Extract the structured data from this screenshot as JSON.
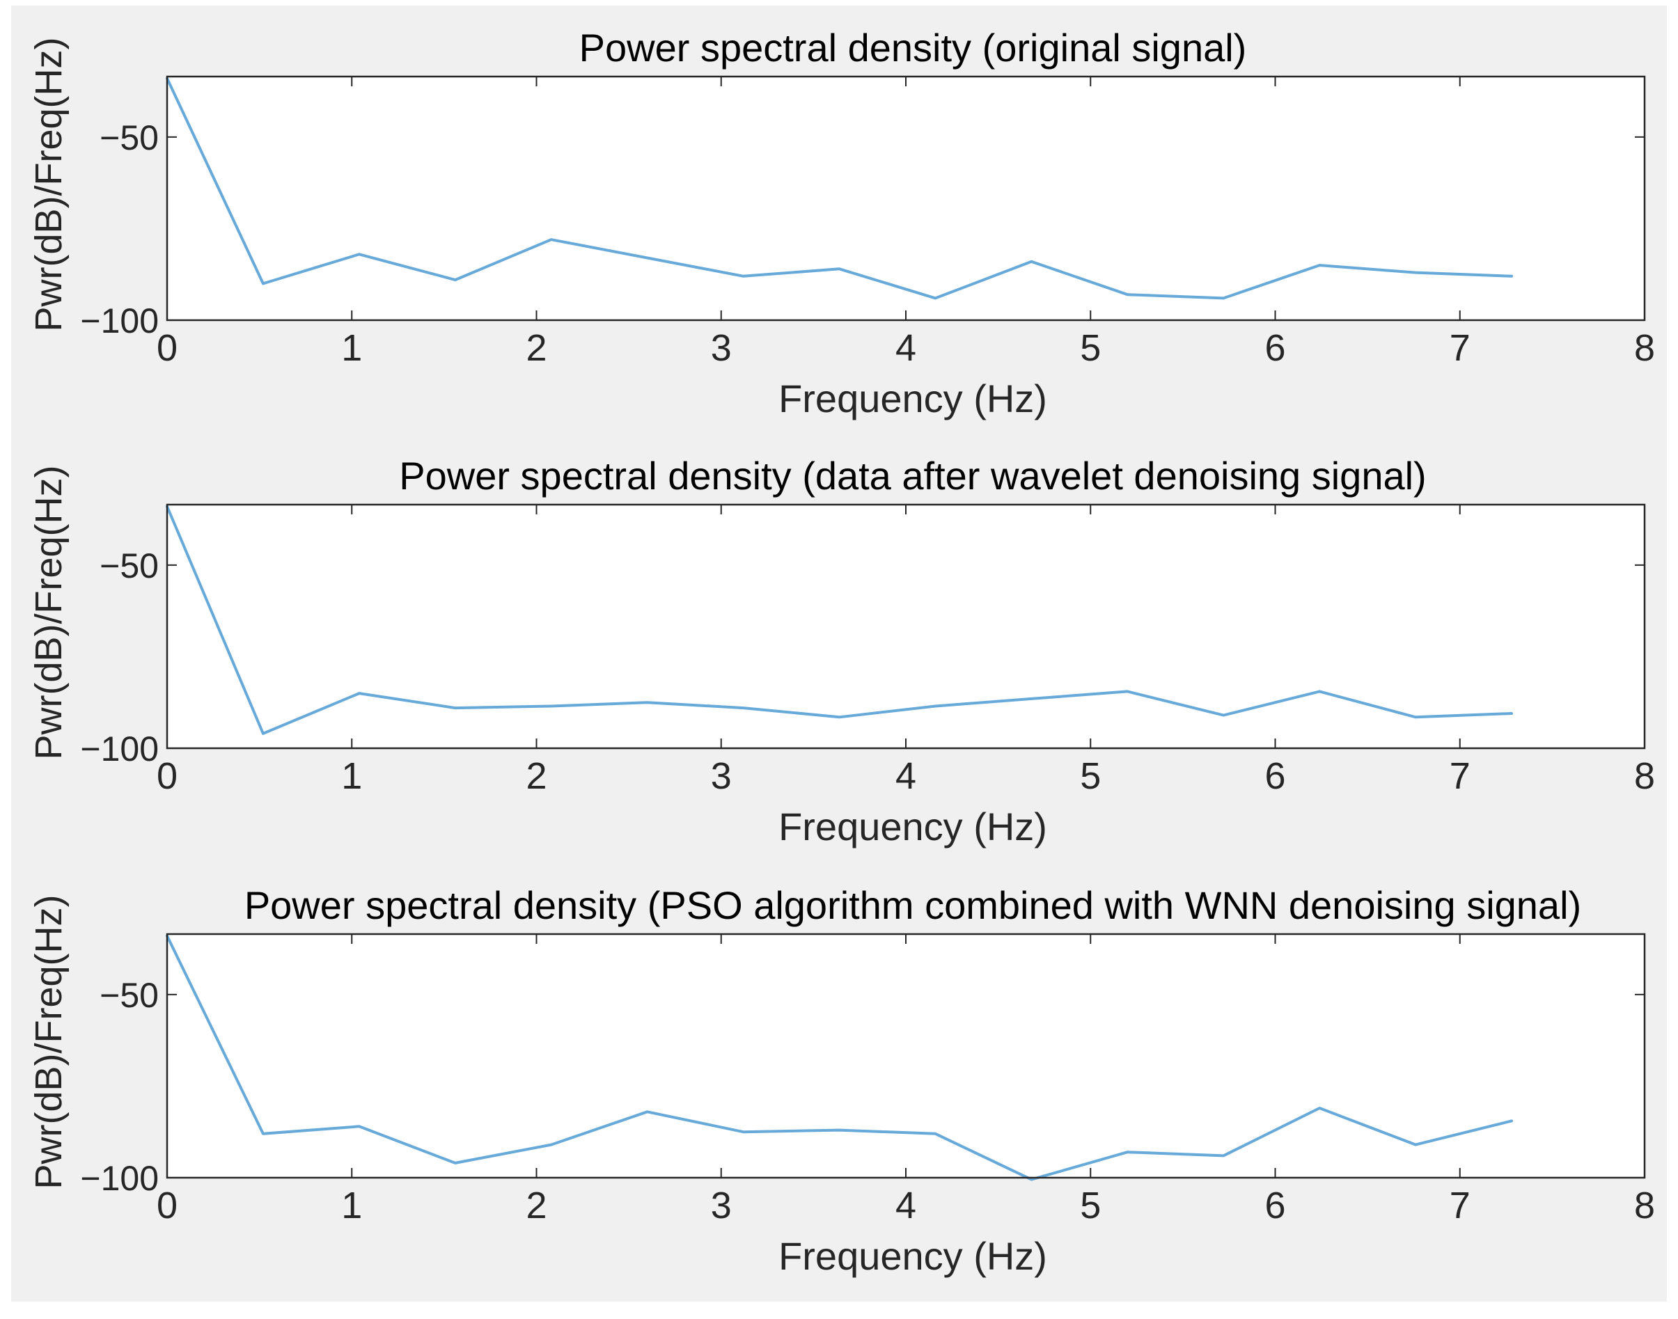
{
  "chart_data": [
    {
      "type": "line",
      "title": "Power spectral density (original signal)",
      "xlabel": "Frequency (Hz)",
      "ylabel": "Pwr(dB)/Freq(Hz)",
      "xlim": [
        0,
        8
      ],
      "ylim": [
        -100,
        -33.5
      ],
      "xticks": [
        0,
        1,
        2,
        3,
        4,
        5,
        6,
        7,
        8
      ],
      "xtick_labels": [
        "0",
        "1",
        "2",
        "3",
        "4",
        "5",
        "6",
        "7",
        "8"
      ],
      "yticks": [
        -100,
        -50
      ],
      "ytick_labels": [
        "−100",
        "−50"
      ],
      "grid": false,
      "series": [
        {
          "color": "#67a9d8",
          "x": [
            0,
            0.52,
            1.04,
            1.56,
            2.08,
            2.6,
            3.12,
            3.64,
            4.16,
            4.68,
            5.2,
            5.72,
            6.24,
            6.76,
            7.28
          ],
          "y": [
            -34,
            -90,
            -82,
            -89,
            -78,
            -83,
            -88,
            -86,
            -94,
            -84,
            -93,
            -94,
            -85,
            -87,
            -88
          ]
        }
      ]
    },
    {
      "type": "line",
      "title": "Power spectral density (data after wavelet denoising signal)",
      "xlabel": "Frequency (Hz)",
      "ylabel": "Pwr(dB)/Freq(Hz)",
      "xlim": [
        0,
        8
      ],
      "ylim": [
        -100,
        -33.5
      ],
      "xticks": [
        0,
        1,
        2,
        3,
        4,
        5,
        6,
        7,
        8
      ],
      "xtick_labels": [
        "0",
        "1",
        "2",
        "3",
        "4",
        "5",
        "6",
        "7",
        "8"
      ],
      "yticks": [
        -100,
        -50
      ],
      "ytick_labels": [
        "−100",
        "−50"
      ],
      "grid": false,
      "series": [
        {
          "color": "#67a9d8",
          "x": [
            0,
            0.52,
            1.04,
            1.56,
            2.08,
            2.6,
            3.12,
            3.64,
            4.16,
            4.68,
            5.2,
            5.72,
            6.24,
            6.76,
            7.28
          ],
          "y": [
            -34,
            -96,
            -85,
            -89,
            -88.5,
            -87.5,
            -89,
            -91.5,
            -88.5,
            -86.5,
            -84.5,
            -91,
            -84.5,
            -91.5,
            -90.5
          ]
        }
      ]
    },
    {
      "type": "line",
      "title": "Power spectral density (PSO algorithm combined with WNN denoising signal)",
      "xlabel": "Frequency (Hz)",
      "ylabel": "Pwr(dB)/Freq(Hz)",
      "xlim": [
        0,
        8
      ],
      "ylim": [
        -100,
        -33.5
      ],
      "xticks": [
        0,
        1,
        2,
        3,
        4,
        5,
        6,
        7,
        8
      ],
      "xtick_labels": [
        "0",
        "1",
        "2",
        "3",
        "4",
        "5",
        "6",
        "7",
        "8"
      ],
      "yticks": [
        -100,
        -50
      ],
      "ytick_labels": [
        "−100",
        "−50"
      ],
      "grid": false,
      "series": [
        {
          "color": "#67a9d8",
          "x": [
            0,
            0.52,
            1.04,
            1.56,
            2.08,
            2.6,
            3.12,
            3.64,
            4.16,
            4.68,
            5.2,
            5.72,
            6.24,
            6.76,
            7.28
          ],
          "y": [
            -34,
            -88,
            -86,
            -96,
            -91,
            -82,
            -87.5,
            -87,
            -88,
            -100.5,
            -93,
            -94,
            -81,
            -91,
            -84.5
          ]
        }
      ]
    }
  ]
}
